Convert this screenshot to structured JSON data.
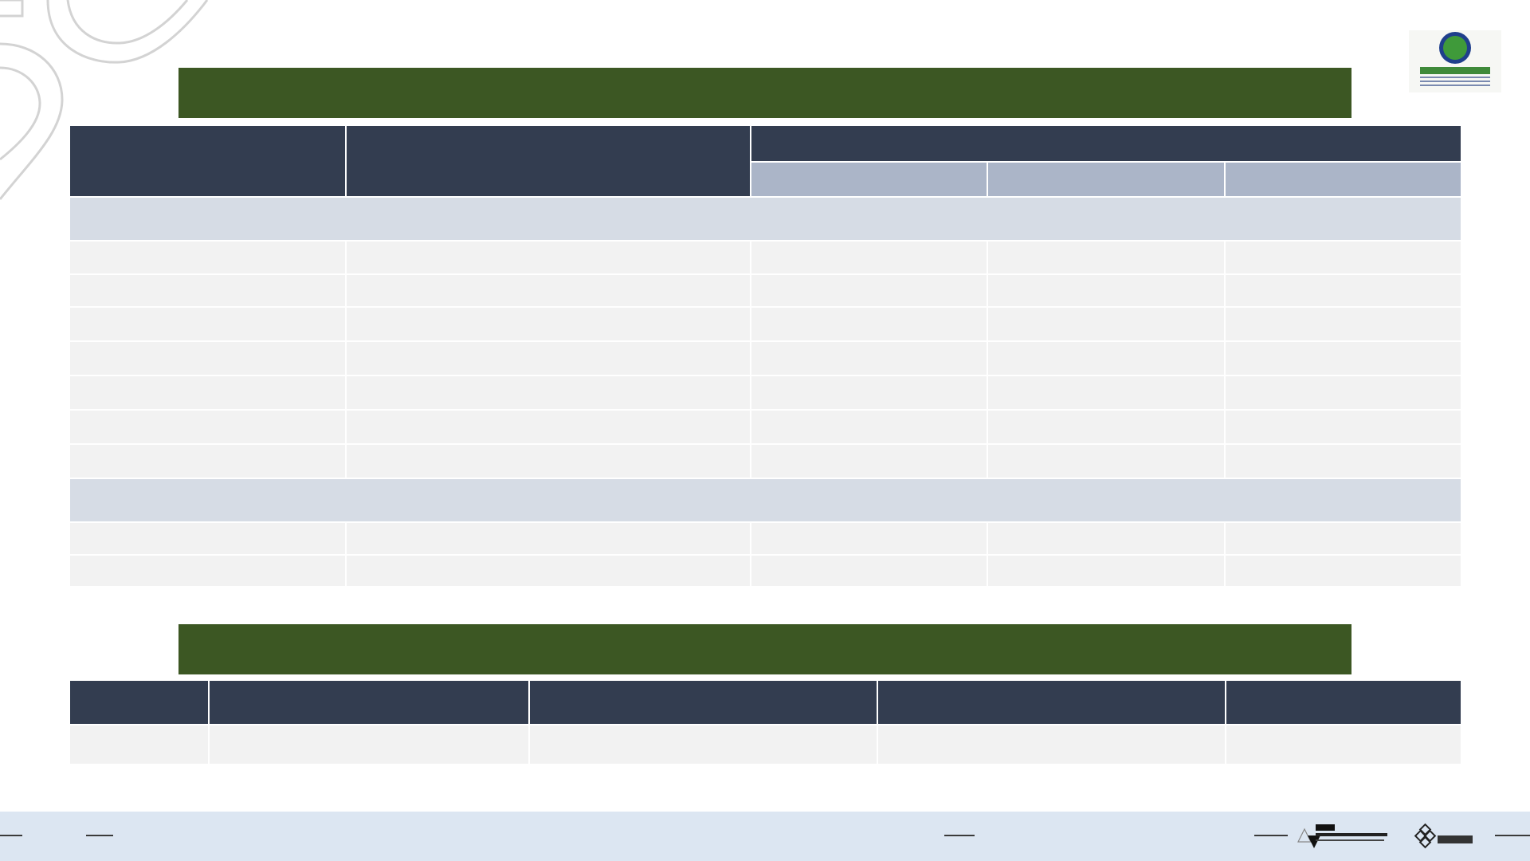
{
  "colors": {
    "title_bar": "#3c5723",
    "header_dark": "#333d50",
    "header_light": "#abb5c8",
    "section_row": "#d6dce5",
    "data_cell": "#f2f2f2",
    "footer": "#dce6f2"
  },
  "logos": {
    "top_right": "chamber-of-commerce-logo",
    "footer_left": "nsce-logo",
    "footer_right": "4us-logo"
  },
  "table_one": {
    "title": "",
    "header_main": [
      "",
      ""
    ],
    "header_group": "",
    "header_sub": [
      "",
      "",
      ""
    ],
    "section_1": {
      "label": "",
      "rows": [
        [
          "",
          "",
          "",
          "",
          ""
        ],
        [
          "",
          "",
          "",
          "",
          ""
        ],
        [
          "",
          "",
          "",
          "",
          ""
        ],
        [
          "",
          "",
          "",
          "",
          ""
        ],
        [
          "",
          "",
          "",
          "",
          ""
        ],
        [
          "",
          "",
          "",
          "",
          ""
        ],
        [
          "",
          "",
          "",
          "",
          ""
        ]
      ]
    },
    "section_2": {
      "label": "",
      "rows": [
        [
          "",
          "",
          "",
          "",
          ""
        ],
        [
          "",
          "",
          "",
          "",
          ""
        ]
      ]
    }
  },
  "table_two": {
    "title": "",
    "headers": [
      "",
      "",
      "",
      "",
      ""
    ],
    "rows": [
      [
        "",
        "",
        "",
        "",
        ""
      ]
    ]
  }
}
